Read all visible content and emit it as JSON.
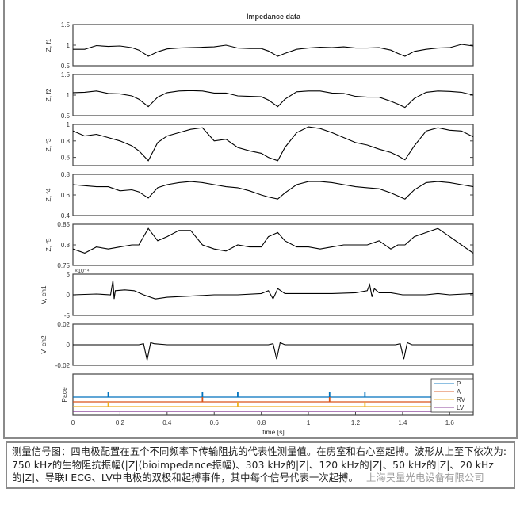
{
  "chart_data": {
    "type": "line",
    "title": "Impedance data",
    "xlabel": "time [s]",
    "xlim": [
      0,
      1.7
    ],
    "xticks": [
      "0",
      "0.2",
      "0.4",
      "0.6",
      "0.8",
      "1",
      "1.2",
      "1.4",
      "1.6"
    ],
    "x": [
      0,
      0.05,
      0.1,
      0.15,
      0.2,
      0.25,
      0.28,
      0.32,
      0.36,
      0.4,
      0.45,
      0.5,
      0.55,
      0.6,
      0.65,
      0.7,
      0.75,
      0.8,
      0.83,
      0.87,
      0.9,
      0.95,
      1.0,
      1.05,
      1.1,
      1.15,
      1.2,
      1.25,
      1.3,
      1.35,
      1.38,
      1.41,
      1.45,
      1.5,
      1.55,
      1.6,
      1.65,
      1.7
    ],
    "panels": [
      {
        "ylabel": "Z, f1",
        "ylim": [
          0.5,
          1.5
        ],
        "yticks": [
          "0.5",
          "1",
          "1.5"
        ],
        "tickvals": [
          0.5,
          1,
          1.5
        ],
        "values": [
          0.9,
          0.9,
          0.99,
          0.97,
          0.98,
          0.94,
          0.88,
          0.73,
          0.84,
          0.91,
          0.93,
          0.94,
          0.95,
          0.96,
          1.0,
          0.93,
          0.92,
          0.92,
          0.86,
          0.73,
          0.8,
          0.9,
          0.93,
          0.95,
          0.94,
          0.96,
          0.93,
          0.93,
          0.94,
          0.88,
          0.8,
          0.73,
          0.85,
          0.9,
          0.93,
          0.94,
          1.02,
          0.98
        ]
      },
      {
        "ylabel": "Z, f2",
        "ylim": [
          0.5,
          1.5
        ],
        "yticks": [
          "0.5",
          "1",
          "1.5"
        ],
        "tickvals": [
          0.5,
          1,
          1.5
        ],
        "values": [
          1.06,
          1.07,
          1.1,
          1.04,
          1.03,
          0.98,
          0.9,
          0.72,
          0.95,
          1.06,
          1.1,
          1.11,
          1.1,
          1.05,
          1.05,
          0.98,
          0.97,
          0.96,
          0.88,
          0.72,
          0.9,
          1.08,
          1.1,
          1.1,
          1.05,
          1.04,
          0.97,
          0.95,
          0.95,
          0.85,
          0.78,
          0.7,
          0.92,
          1.07,
          1.1,
          1.09,
          1.07,
          1.0
        ]
      },
      {
        "ylabel": "Z, f3",
        "ylim": [
          0.5,
          1.0
        ],
        "yticks": [
          "0.6",
          "0.8",
          "1"
        ],
        "tickvals": [
          0.6,
          0.8,
          1.0
        ],
        "values": [
          0.92,
          0.86,
          0.88,
          0.84,
          0.8,
          0.74,
          0.68,
          0.56,
          0.78,
          0.86,
          0.9,
          0.94,
          0.96,
          0.8,
          0.82,
          0.72,
          0.68,
          0.65,
          0.6,
          0.56,
          0.72,
          0.9,
          0.97,
          0.95,
          0.9,
          0.84,
          0.78,
          0.75,
          0.7,
          0.66,
          0.62,
          0.57,
          0.74,
          0.92,
          0.96,
          0.93,
          0.92,
          0.85
        ]
      },
      {
        "ylabel": "Z, f4",
        "ylim": [
          0.4,
          0.8
        ],
        "yticks": [
          "0.4",
          "0.6",
          "0.8"
        ],
        "tickvals": [
          0.4,
          0.6,
          0.8
        ],
        "values": [
          0.7,
          0.69,
          0.68,
          0.68,
          0.64,
          0.65,
          0.63,
          0.57,
          0.67,
          0.7,
          0.72,
          0.73,
          0.72,
          0.7,
          0.68,
          0.67,
          0.64,
          0.6,
          0.58,
          0.56,
          0.62,
          0.7,
          0.73,
          0.73,
          0.72,
          0.7,
          0.68,
          0.67,
          0.66,
          0.62,
          0.59,
          0.56,
          0.65,
          0.72,
          0.73,
          0.72,
          0.7,
          0.68
        ]
      },
      {
        "ylabel": "Z, f5",
        "ylim": [
          0.75,
          0.85
        ],
        "yticks": [
          "0.75",
          "0.8",
          "0.85"
        ],
        "tickvals": [
          0.75,
          0.8,
          0.85
        ],
        "values": [
          0.79,
          0.78,
          0.795,
          0.79,
          0.795,
          0.8,
          0.8,
          0.84,
          0.81,
          0.82,
          0.835,
          0.835,
          0.8,
          0.79,
          0.785,
          0.8,
          0.795,
          0.795,
          0.82,
          0.83,
          0.81,
          0.795,
          0.795,
          0.79,
          0.795,
          0.8,
          0.8,
          0.8,
          0.81,
          0.79,
          0.8,
          0.8,
          0.82,
          0.83,
          0.84,
          0.82,
          0.8,
          0.78
        ]
      },
      {
        "ylabel": "V, ch1",
        "ylim": [
          -5,
          5
        ],
        "yticks": [
          "-5",
          "0",
          "5"
        ],
        "tickvals": [
          -5,
          0,
          5
        ],
        "exponent": "×10⁻⁴",
        "x": [
          0,
          0.1,
          0.16,
          0.17,
          0.175,
          0.18,
          0.22,
          0.26,
          0.3,
          0.35,
          0.4,
          0.5,
          0.6,
          0.7,
          0.8,
          0.83,
          0.85,
          0.87,
          0.9,
          1.0,
          1.1,
          1.2,
          1.25,
          1.26,
          1.27,
          1.28,
          1.3,
          1.35,
          1.4,
          1.5,
          1.55,
          1.6,
          1.7
        ],
        "values": [
          0,
          0.2,
          0,
          3.5,
          -1,
          1,
          1.2,
          1,
          0,
          -1,
          -0.6,
          -0.3,
          0,
          0,
          0.3,
          1,
          -1,
          1.5,
          0.3,
          0.3,
          0.3,
          0.5,
          1,
          2.5,
          -0.5,
          1.5,
          0.5,
          0.5,
          0,
          0,
          0.3,
          0,
          0.3
        ]
      },
      {
        "ylabel": "V, ch2",
        "ylim": [
          -0.02,
          0.02
        ],
        "yticks": [
          "-0.02",
          "0",
          "0.02"
        ],
        "tickvals": [
          -0.02,
          0,
          0.02
        ],
        "x": [
          0,
          0.28,
          0.3,
          0.315,
          0.33,
          0.345,
          0.4,
          0.83,
          0.85,
          0.865,
          0.88,
          0.9,
          1.37,
          1.39,
          1.405,
          1.42,
          1.44,
          1.7
        ],
        "values": [
          0,
          0,
          0.001,
          -0.015,
          0.002,
          0.001,
          0,
          0,
          0.001,
          -0.014,
          0.002,
          0,
          0,
          0.001,
          -0.014,
          0.002,
          0,
          0
        ]
      }
    ],
    "pace": {
      "ylabel": "Pace",
      "legend_position": "top-right",
      "series": [
        {
          "name": "P",
          "color": "#0072BD",
          "events": [
            0.15,
            0.55,
            0.7,
            1.09,
            1.24
          ]
        },
        {
          "name": "A",
          "color": "#D95319",
          "events": [
            0.55,
            1.09
          ]
        },
        {
          "name": "RV",
          "color": "#EDB120",
          "events": [
            0.15,
            0.7,
            1.24
          ]
        },
        {
          "name": "LV",
          "color": "#7E2F8E",
          "events": []
        }
      ]
    }
  },
  "caption": {
    "text": "测量信号图：四电极配置在五个不同频率下传输阻抗的代表性测量值。在房室和右心室起搏。波形从上至下依次为: 750 kHz的生物阻抗振幅(|Z|(bioimpedance振幅)、303 kHz的|Z|、120 kHz的|Z|、50 kHz的|Z|、20 kHz的|Z|、导联I ECG、LV中电极的双极和起搏事件，其中每个信号代表一次起搏。",
    "watermark": "上海昊量光电设备有限公司"
  }
}
